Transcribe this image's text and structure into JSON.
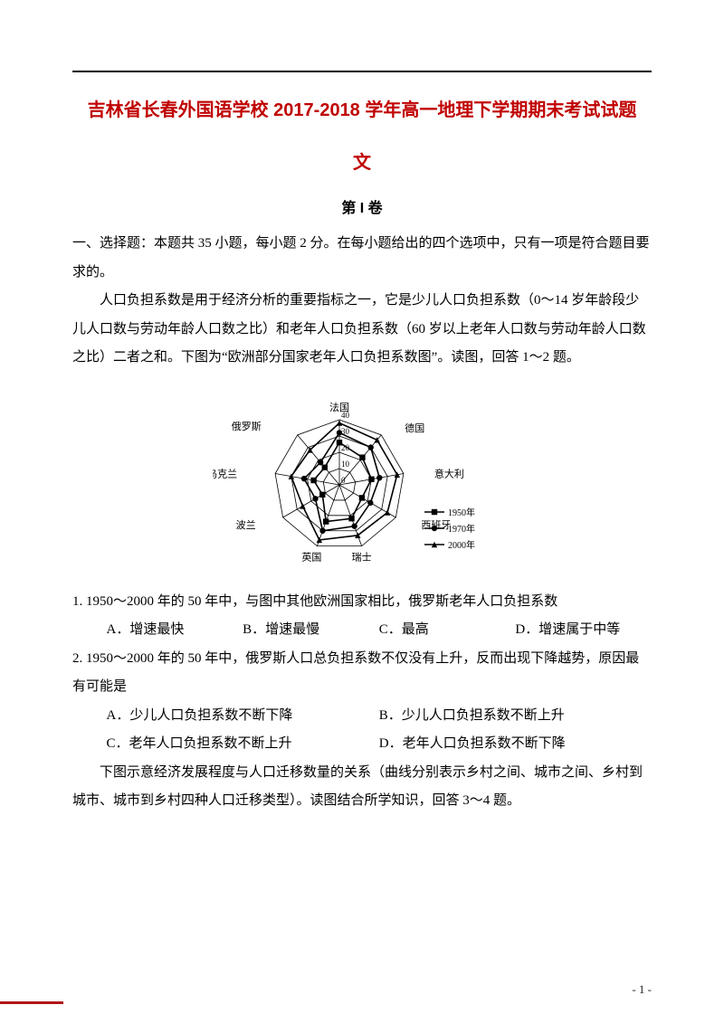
{
  "title_line1": "吉林省长春外国语学校 2017-2018 学年高一地理下学期期末考试试题",
  "title_line2": "文",
  "section_label": "第 I 卷",
  "instructions": "一、选择题：本题共 35 小题，每小题 2 分。在每小题给出的四个选项中，只有一项是符合题目要求的。",
  "passage1": "人口负担系数是用于经济分析的重要指标之一，它是少儿人口负担系数（0～14 岁年龄段少儿人口数与劳动年龄人口数之比）和老年人口负担系数（60 岁以上老年人口数与劳动年龄人口数之比）二者之和。下图为“欧洲部分国家老年人口负担系数图”。读图，回答 1～2 题。",
  "q1_stem": "1. 1950～2000 年的 50 年中，与图中其他欧洲国家相比，俄罗斯老年人口负担系数",
  "q1_opts": {
    "A": "A．增速最快",
    "B": "B．增速最慢",
    "C": "C．最高",
    "D": "D．增速属于中等"
  },
  "q2_stem": "2. 1950～2000 年的 50 年中，俄罗斯人口总负担系数不仅没有上升，反而出现下降越势，原因最有可能是",
  "q2_opts": {
    "A": "A．少儿人口负担系数不断下降",
    "B": "B．少儿人口负担系数不断上升",
    "C": "C．老年人口负担系数不断上升",
    "D": "D．老年人口负担系数不断下降"
  },
  "passage2": "下图示意经济发展程度与人口迁移数量的关系（曲线分别表示乡村之间、城市之间、乡村到城市、城市到乡村四种人口迁移类型）。读图结合所学知识，回答 3～4 题。",
  "page_number": "- 1 -",
  "radar": {
    "axes": [
      "法国",
      "德国",
      "意大利",
      "西班牙",
      "瑞士",
      "英国",
      "波兰",
      "乌克兰",
      "俄罗斯"
    ],
    "rings": [
      0,
      10,
      20,
      30,
      40
    ],
    "series": [
      {
        "name": "1950年",
        "marker": "square",
        "values": [
          26,
          22,
          20,
          16,
          22,
          24,
          12,
          16,
          14
        ]
      },
      {
        "name": "1970年",
        "marker": "circle",
        "values": [
          32,
          30,
          25,
          22,
          27,
          30,
          17,
          22,
          18
        ]
      },
      {
        "name": "2000年",
        "marker": "triangle",
        "values": [
          38,
          36,
          36,
          34,
          33,
          36,
          26,
          30,
          28
        ]
      }
    ],
    "stroke": "#000000",
    "grid": "#000000"
  }
}
